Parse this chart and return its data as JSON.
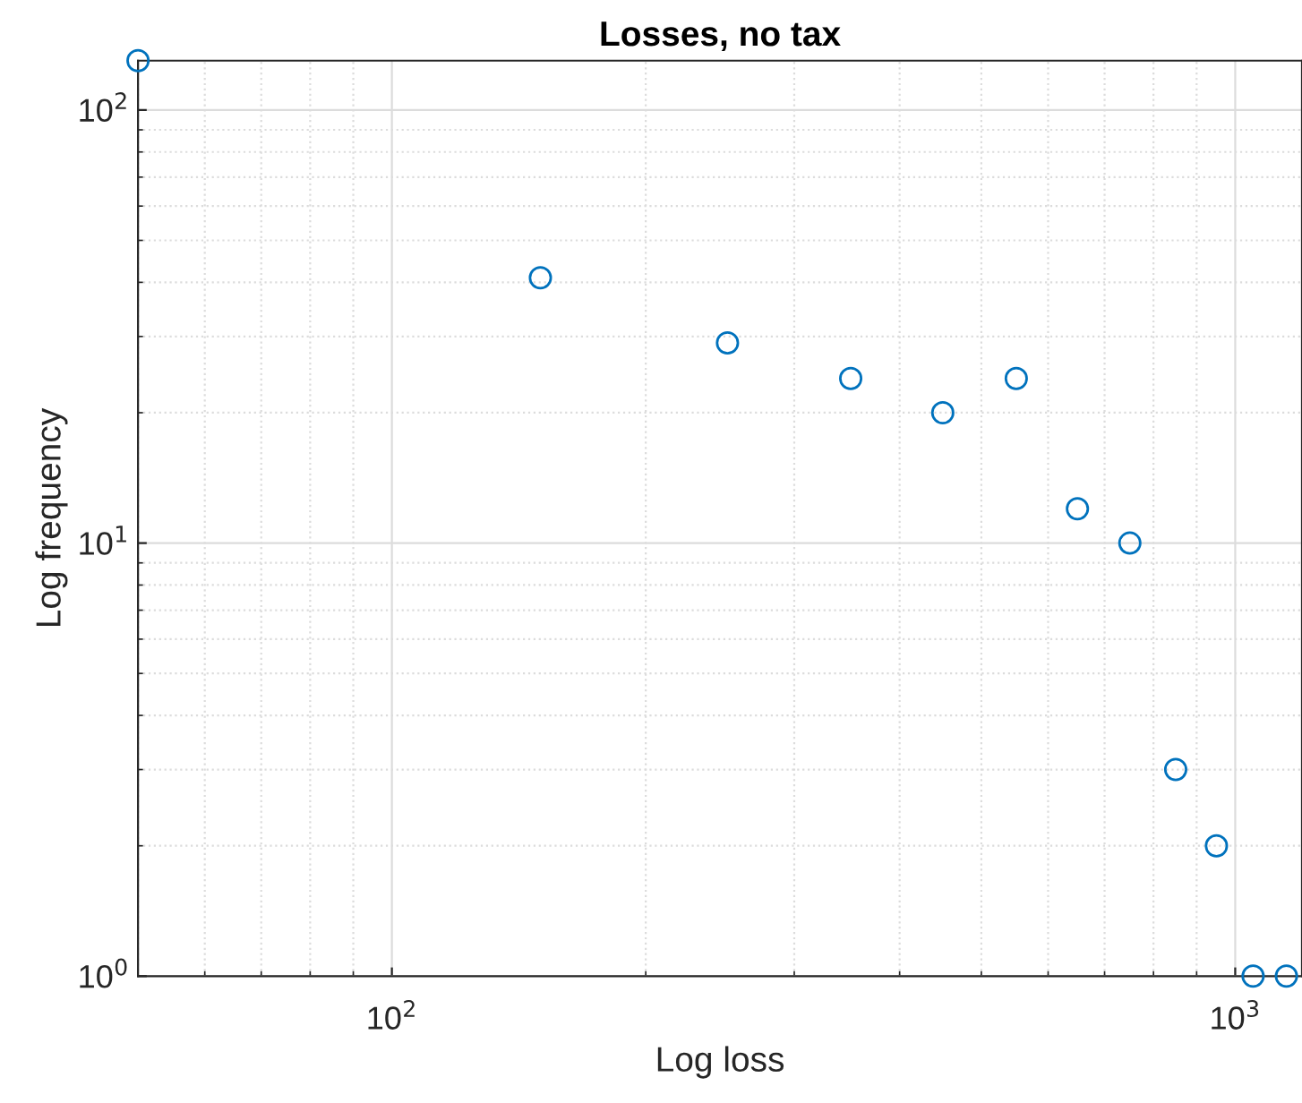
{
  "chart_data": {
    "type": "scatter",
    "title": "Losses, no tax",
    "xlabel": "Log loss",
    "ylabel": "Log frequency",
    "x": [
      50,
      150,
      250,
      350,
      450,
      550,
      650,
      750,
      850,
      950,
      1050,
      1150
    ],
    "series": [
      {
        "color": "#0072bd",
        "values": [
          130,
          41,
          29,
          24,
          20,
          24,
          12,
          10,
          3,
          2,
          1,
          1
        ]
      }
    ],
    "log": "xy",
    "xlim": [
      50,
      1200
    ],
    "ylim": [
      1,
      130
    ],
    "xticks": [
      {
        "value": 100,
        "label": "10$^{2}$"
      },
      {
        "value": 1000,
        "label": "10$^{3}$"
      }
    ],
    "yticks": [
      {
        "value": 1,
        "label": "10$^{0}$"
      },
      {
        "value": 10,
        "label": "10$^{1}$"
      },
      {
        "value": 100,
        "label": "10$^{2}$"
      }
    ],
    "grid": true,
    "marker": "circle",
    "legend": false
  }
}
